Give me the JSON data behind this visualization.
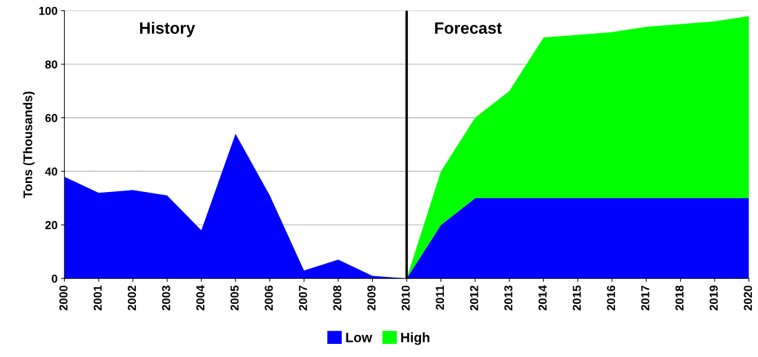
{
  "chart_data": {
    "type": "area",
    "stacked": true,
    "ylabel": "Tons (Thousands)",
    "x": [
      2000,
      2001,
      2002,
      2003,
      2004,
      2005,
      2006,
      2007,
      2008,
      2009,
      2010,
      2011,
      2012,
      2013,
      2014,
      2015,
      2016,
      2017,
      2018,
      2019,
      2020
    ],
    "series": [
      {
        "name": "Low",
        "color": "#0000ff",
        "values": [
          38,
          32,
          33,
          31,
          18,
          54,
          31,
          3,
          7,
          1,
          0,
          20,
          30,
          30,
          30,
          30,
          30,
          30,
          30,
          30,
          30
        ]
      },
      {
        "name": "High",
        "color": "#00ff00",
        "values": [
          null,
          null,
          null,
          null,
          null,
          null,
          null,
          null,
          null,
          null,
          0,
          20,
          30,
          40,
          60,
          61,
          62,
          64,
          65,
          66,
          68
        ]
      }
    ],
    "xlim": [
      2000,
      2020
    ],
    "xticks": [
      2000,
      2001,
      2002,
      2003,
      2004,
      2005,
      2006,
      2007,
      2008,
      2009,
      2010,
      2011,
      2012,
      2013,
      2014,
      2015,
      2016,
      2017,
      2018,
      2019,
      2020
    ],
    "ylim": [
      0,
      100
    ],
    "yticks": [
      0,
      20,
      40,
      60,
      80,
      100
    ],
    "ref_lines": [
      {
        "axis": "x",
        "value": 2010,
        "color": "#000000"
      }
    ],
    "annotations": [
      "History",
      "Forecast"
    ],
    "grid": "y",
    "legend": "bottom"
  }
}
